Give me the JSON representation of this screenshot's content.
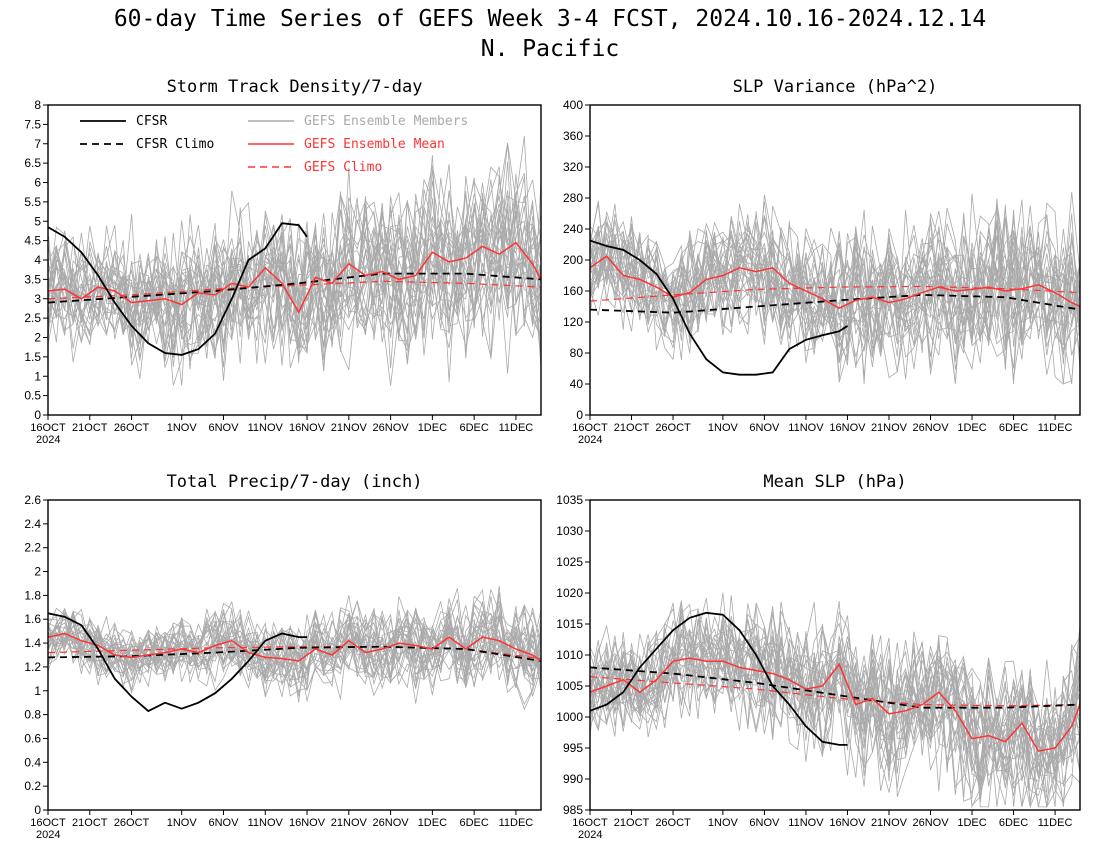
{
  "figure": {
    "title_line1": "60-day Time Series of GEFS Week 3-4 FCST, 2024.10.16-2024.12.14",
    "title_line2": "N. Pacific"
  },
  "legend": {
    "cfsr": "CFSR",
    "cfsr_climo": "CFSR Climo",
    "gefs_members": "GEFS Ensemble Members",
    "gefs_mean": "GEFS Ensemble Mean",
    "gefs_climo": "GEFS Climo"
  },
  "colors": {
    "cfsr": "#000000",
    "members": "#aaaaaa",
    "gefs_mean": "#ff3333",
    "gefs_climo": "#ff3333"
  },
  "x_ticks": {
    "labels": [
      "16OCT",
      "21OCT",
      "26OCT",
      "1NOV",
      "6NOV",
      "11NOV",
      "16NOV",
      "21NOV",
      "26NOV",
      "1DEC",
      "6DEC",
      "11DEC"
    ],
    "days": [
      0,
      5,
      10,
      16,
      21,
      26,
      31,
      36,
      41,
      46,
      51,
      56
    ],
    "year_label": "2024"
  },
  "chart_data": [
    {
      "type": "line",
      "title": "Storm Track Density/7-day",
      "xlim": [
        0,
        59
      ],
      "ylim": [
        0,
        8
      ],
      "yticks": [
        "0",
        "0.5",
        "1",
        "1.5",
        "2",
        "2.5",
        "3",
        "3.5",
        "4",
        "4.5",
        "5",
        "5.5",
        "6",
        "6.5",
        "7",
        "7.5",
        "8"
      ],
      "series": [
        {
          "name": "CFSR",
          "x": [
            0,
            2,
            4,
            6,
            8,
            10,
            12,
            14,
            16,
            18,
            20,
            22,
            24,
            26,
            28,
            30,
            31
          ],
          "y": [
            4.85,
            4.6,
            4.2,
            3.6,
            2.9,
            2.3,
            1.85,
            1.6,
            1.55,
            1.7,
            2.1,
            3.0,
            4.0,
            4.3,
            4.95,
            4.9,
            4.6
          ]
        },
        {
          "name": "CFSR Climo",
          "x": [
            0,
            10,
            20,
            30,
            40,
            50,
            59
          ],
          "y": [
            2.9,
            3.05,
            3.2,
            3.4,
            3.65,
            3.65,
            3.5
          ]
        },
        {
          "name": "GEFS Ensemble Mean",
          "x": [
            0,
            2,
            4,
            6,
            8,
            10,
            12,
            14,
            16,
            18,
            20,
            22,
            24,
            26,
            28,
            30,
            32,
            34,
            36,
            38,
            40,
            42,
            44,
            46,
            48,
            50,
            52,
            54,
            56,
            58,
            59
          ],
          "y": [
            3.2,
            3.25,
            3.0,
            3.3,
            3.2,
            2.9,
            2.95,
            3.0,
            2.85,
            3.15,
            3.1,
            3.4,
            3.3,
            3.8,
            3.4,
            2.65,
            3.55,
            3.4,
            3.9,
            3.6,
            3.7,
            3.5,
            3.6,
            4.2,
            3.95,
            4.05,
            4.35,
            4.15,
            4.45,
            3.9,
            3.5
          ]
        },
        {
          "name": "GEFS Climo",
          "x": [
            0,
            10,
            20,
            30,
            40,
            50,
            59
          ],
          "y": [
            3.0,
            3.1,
            3.25,
            3.35,
            3.45,
            3.4,
            3.3
          ]
        }
      ],
      "members": {
        "count": 30,
        "spread": 1.25,
        "base": "mean",
        "ymin": 0.2,
        "ymax": 7.5
      }
    },
    {
      "type": "line",
      "title": "SLP Variance (hPa^2)",
      "xlim": [
        0,
        59
      ],
      "ylim": [
        0,
        400
      ],
      "yticks": [
        "0",
        "40",
        "80",
        "120",
        "160",
        "200",
        "240",
        "280",
        "320",
        "360",
        "400"
      ],
      "series": [
        {
          "name": "CFSR",
          "x": [
            0,
            2,
            4,
            6,
            8,
            10,
            12,
            14,
            16,
            18,
            20,
            22,
            24,
            26,
            28,
            30,
            31
          ],
          "y": [
            225,
            218,
            213,
            200,
            182,
            150,
            105,
            72,
            55,
            52,
            52,
            55,
            85,
            97,
            103,
            108,
            115
          ]
        },
        {
          "name": "CFSR Climo",
          "x": [
            0,
            10,
            20,
            30,
            40,
            50,
            59
          ],
          "y": [
            136,
            132,
            140,
            148,
            155,
            152,
            136
          ]
        },
        {
          "name": "GEFS Ensemble Mean",
          "x": [
            0,
            2,
            4,
            6,
            8,
            10,
            12,
            14,
            16,
            18,
            20,
            22,
            24,
            26,
            28,
            30,
            32,
            34,
            36,
            38,
            40,
            42,
            44,
            46,
            48,
            50,
            52,
            54,
            56,
            58,
            59
          ],
          "y": [
            190,
            205,
            180,
            175,
            165,
            152,
            158,
            175,
            180,
            190,
            185,
            190,
            170,
            160,
            150,
            138,
            148,
            152,
            145,
            150,
            158,
            165,
            160,
            162,
            165,
            160,
            163,
            168,
            158,
            145,
            140
          ]
        },
        {
          "name": "GEFS Climo",
          "x": [
            0,
            10,
            20,
            30,
            40,
            50,
            59
          ],
          "y": [
            147,
            155,
            162,
            165,
            166,
            163,
            158
          ]
        }
      ],
      "members": {
        "count": 30,
        "spread": 55,
        "base": "mean",
        "ymin": 40,
        "ymax": 390
      }
    },
    {
      "type": "line",
      "title": "Total Precip/7-day (inch)",
      "xlim": [
        0,
        59
      ],
      "ylim": [
        0,
        2.6
      ],
      "yticks": [
        "0",
        "0.2",
        "0.4",
        "0.6",
        "0.8",
        "1",
        "1.2",
        "1.4",
        "1.6",
        "1.8",
        "2",
        "2.2",
        "2.4",
        "2.6"
      ],
      "series": [
        {
          "name": "CFSR",
          "x": [
            0,
            2,
            4,
            6,
            8,
            10,
            12,
            14,
            16,
            18,
            20,
            22,
            24,
            26,
            28,
            30,
            31
          ],
          "y": [
            1.65,
            1.62,
            1.55,
            1.35,
            1.1,
            0.95,
            0.83,
            0.9,
            0.85,
            0.9,
            0.98,
            1.1,
            1.25,
            1.42,
            1.48,
            1.45,
            1.45
          ]
        },
        {
          "name": "CFSR Climo",
          "x": [
            0,
            10,
            20,
            30,
            40,
            50,
            59
          ],
          "y": [
            1.28,
            1.29,
            1.32,
            1.36,
            1.37,
            1.35,
            1.25
          ]
        },
        {
          "name": "GEFS Ensemble Mean",
          "x": [
            0,
            2,
            4,
            6,
            8,
            10,
            12,
            14,
            16,
            18,
            20,
            22,
            24,
            26,
            28,
            30,
            32,
            34,
            36,
            38,
            40,
            42,
            44,
            46,
            48,
            50,
            52,
            54,
            56,
            58,
            59
          ],
          "y": [
            1.45,
            1.48,
            1.42,
            1.38,
            1.3,
            1.28,
            1.3,
            1.32,
            1.35,
            1.32,
            1.38,
            1.42,
            1.32,
            1.28,
            1.27,
            1.25,
            1.35,
            1.3,
            1.42,
            1.32,
            1.35,
            1.4,
            1.38,
            1.35,
            1.45,
            1.35,
            1.45,
            1.42,
            1.35,
            1.3,
            1.25
          ]
        },
        {
          "name": "GEFS Climo",
          "x": [
            0,
            10,
            20,
            30,
            40,
            50,
            59
          ],
          "y": [
            1.32,
            1.34,
            1.36,
            1.37,
            1.37,
            1.35,
            1.27
          ]
        }
      ],
      "members": {
        "count": 30,
        "spread": 0.2,
        "base": "mean",
        "ymin": 0.45,
        "ymax": 2.1
      }
    },
    {
      "type": "line",
      "title": "Mean SLP (hPa)",
      "xlim": [
        0,
        59
      ],
      "ylim": [
        985,
        1035
      ],
      "yticks": [
        "985",
        "990",
        "995",
        "1000",
        "1005",
        "1010",
        "1015",
        "1020",
        "1025",
        "1030",
        "1035"
      ],
      "series": [
        {
          "name": "CFSR",
          "x": [
            0,
            2,
            4,
            6,
            8,
            10,
            12,
            14,
            16,
            18,
            20,
            22,
            24,
            26,
            28,
            30,
            31
          ],
          "y": [
            1001,
            1002,
            1004,
            1008,
            1011,
            1014,
            1016,
            1016.8,
            1016.5,
            1014,
            1010,
            1005,
            1002,
            998.5,
            996,
            995.5,
            995.5
          ]
        },
        {
          "name": "CFSR Climo",
          "x": [
            0,
            10,
            20,
            30,
            40,
            50,
            59
          ],
          "y": [
            1008,
            1007,
            1005.5,
            1003.5,
            1001.5,
            1001.5,
            1002
          ]
        },
        {
          "name": "GEFS Ensemble Mean",
          "x": [
            0,
            2,
            4,
            6,
            8,
            10,
            12,
            14,
            16,
            18,
            20,
            22,
            24,
            26,
            28,
            30,
            32,
            34,
            36,
            38,
            40,
            42,
            44,
            46,
            48,
            50,
            52,
            54,
            56,
            58,
            59
          ],
          "y": [
            1004,
            1005,
            1006,
            1004,
            1006,
            1009,
            1009.5,
            1009,
            1009,
            1008,
            1007.5,
            1007,
            1006,
            1004.5,
            1005,
            1008.5,
            1002,
            1003,
            1000.5,
            1001,
            1002,
            1004,
            1001,
            996.5,
            997,
            996,
            999,
            994.5,
            995,
            998.5,
            1002
          ]
        },
        {
          "name": "GEFS Climo",
          "x": [
            0,
            10,
            20,
            30,
            40,
            50,
            59
          ],
          "y": [
            1006.5,
            1005.5,
            1004.5,
            1003,
            1002,
            1001.8,
            1002
          ]
        }
      ],
      "members": {
        "count": 30,
        "spread": 6.5,
        "base": "mean",
        "ymin": 985.5,
        "ymax": 1026
      }
    }
  ]
}
